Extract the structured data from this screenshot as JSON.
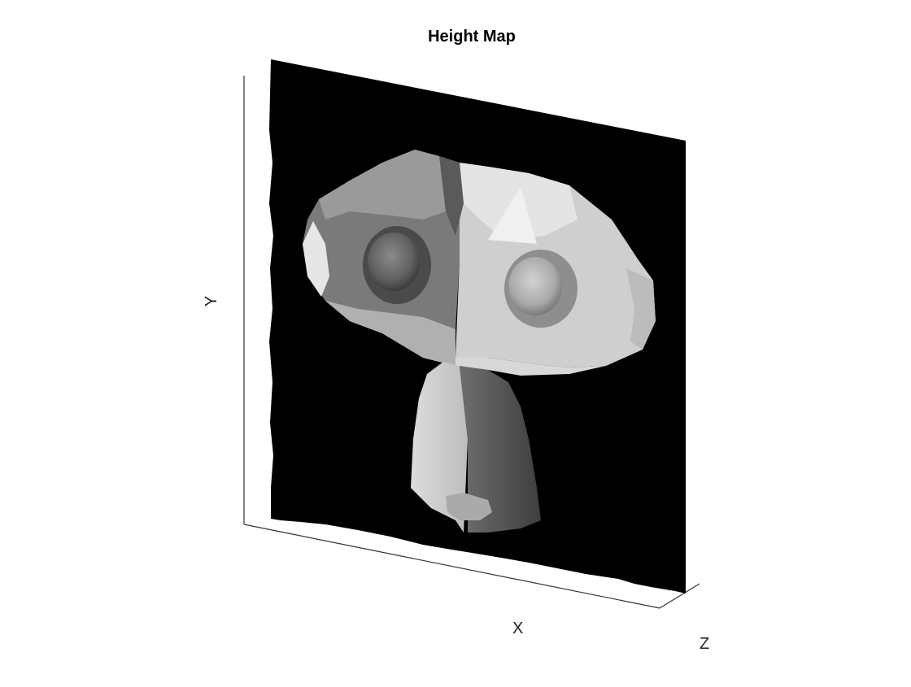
{
  "chart_data": {
    "type": "surface",
    "title": "Height Map",
    "xlabel": "X",
    "ylabel": "Y",
    "zlabel": "Z",
    "colormap": "gray",
    "lighting": "on",
    "view": "3d-perspective",
    "grid": false,
    "tick_labels": "none",
    "background_color": "#000000",
    "surface_subject": "Monkey head (Suzanne) height map"
  }
}
